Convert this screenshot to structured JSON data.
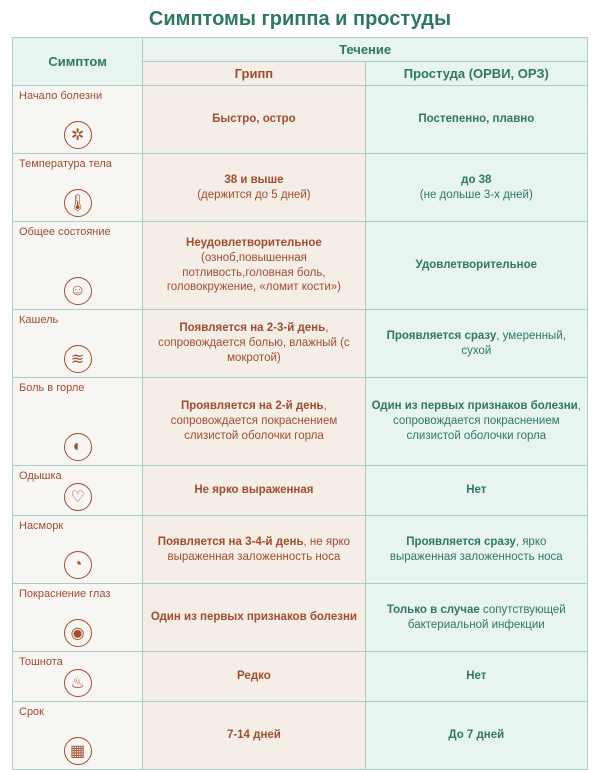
{
  "title": "Симптомы гриппа и простуды",
  "headers": {
    "symptom": "Симптом",
    "flow": "Течение",
    "flu": "Грипп",
    "cold": "Простуда (ОРВИ, ОРЗ)"
  },
  "colors": {
    "flu_text": "#a04d2f",
    "cold_text": "#2d7a5a",
    "flu_bg": "#f4eee6",
    "cold_bg": "#e8f4ef",
    "border": "#a8cfc2"
  },
  "rows": [
    {
      "label": "Начало болезни",
      "icon": "✲",
      "flu_bold": "Быстро, остро",
      "flu_note": "",
      "cold_bold": "Постепенно, плавно",
      "cold_note": ""
    },
    {
      "label": "Температура тела",
      "icon": "🌡",
      "flu_bold": "38 и выше",
      "flu_note": "(держится до 5 дней)",
      "cold_bold": "до 38",
      "cold_note": "(не дольше 3-х дней)"
    },
    {
      "label": "Общее состояние",
      "icon": "☺",
      "flu_bold": "Неудовлетворительное",
      "flu_note": "(озноб,повышенная потливость,головная боль, головокружение, «ломит кости»)",
      "cold_bold": "Удовлетворительное",
      "cold_note": ""
    },
    {
      "label": "Кашель",
      "icon": "≋",
      "flu_bold": "Появляется на 2-3-й день",
      "flu_note": ", сопровождается болью, влажный (с мокротой)",
      "cold_bold": "Проявляется сразу",
      "cold_note": ", умеренный, сухой"
    },
    {
      "label": "Боль в горле",
      "icon": "◐",
      "flu_bold": "Проявляется на 2-й день",
      "flu_note": ", сопровождается покраснениeм слизистой оболочки горла",
      "cold_bold": "Один из первых признаков болезни",
      "cold_note": ", сопровождается покраснением слизистой оболочки горла"
    },
    {
      "label": "Одышка",
      "icon": "♡",
      "flu_bold": "Не ярко выраженная",
      "flu_note": "",
      "cold_bold": "Нет",
      "cold_note": ""
    },
    {
      "label": "Насморк",
      "icon": "◔",
      "flu_bold": "Появляется на 3-4-й день",
      "flu_note": ", не ярко выраженная заложенность носа",
      "cold_bold": "Проявляется сразу",
      "cold_note": ", ярко выраженная заложенность носа"
    },
    {
      "label": "Покраснение глаз",
      "icon": "◉",
      "flu_bold": "Один из первых признаков болезни",
      "flu_note": "",
      "cold_bold": "Только в случае",
      "cold_note": " сопутствующей бактериальной инфекции"
    },
    {
      "label": "Тошнота",
      "icon": "♨",
      "flu_bold": "Редко",
      "flu_note": "",
      "cold_bold": "Нет",
      "cold_note": ""
    },
    {
      "label": "Срок",
      "icon": "▦",
      "flu_bold": "7-14  дней",
      "flu_note": "",
      "cold_bold": "До 7 дней",
      "cold_note": ""
    }
  ],
  "row_heights": [
    "row-med",
    "row-med",
    "row-tall",
    "row-med",
    "row-tall",
    "row-low",
    "row-med",
    "row-med",
    "row-low",
    "row-med"
  ]
}
